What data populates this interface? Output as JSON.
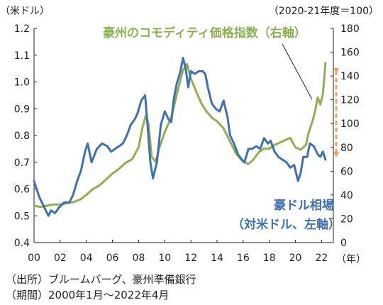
{
  "chart_data": {
    "type": "line",
    "left_unit_label": "（米ドル）",
    "right_unit_label": "（2020-21年度＝100）",
    "x_unit_label": "（年）",
    "x_ticks": [
      "00",
      "02",
      "04",
      "06",
      "08",
      "10",
      "12",
      "14",
      "16",
      "18",
      "20",
      "22"
    ],
    "x_range": [
      2000,
      2022.9
    ],
    "y_left": {
      "ticks": [
        "0.4",
        "0.5",
        "0.6",
        "0.7",
        "0.8",
        "0.9",
        "1.0",
        "1.1",
        "1.2"
      ],
      "range": [
        0.4,
        1.2
      ]
    },
    "y_right": {
      "ticks": [
        "0",
        "20",
        "40",
        "60",
        "80",
        "100",
        "120",
        "140",
        "160",
        "180"
      ],
      "range": [
        0,
        180
      ]
    },
    "series": [
      {
        "name": "豪州のコモディティ価格指数（右軸）",
        "axis": "right",
        "color": "#8DB152",
        "x": [
          2000.0,
          2000.5,
          2001.0,
          2001.5,
          2002.0,
          2002.5,
          2003.0,
          2003.5,
          2004.0,
          2004.5,
          2005.0,
          2005.5,
          2006.0,
          2006.5,
          2007.0,
          2007.5,
          2008.0,
          2008.3,
          2008.55,
          2008.75,
          2009.0,
          2009.3,
          2009.6,
          2010.0,
          2010.5,
          2011.0,
          2011.4,
          2011.7,
          2012.0,
          2012.4,
          2012.8,
          2013.2,
          2013.6,
          2014.0,
          2014.5,
          2015.0,
          2015.5,
          2016.0,
          2016.4,
          2016.8,
          2017.2,
          2017.6,
          2018.0,
          2018.4,
          2018.8,
          2019.2,
          2019.6,
          2020.0,
          2020.4,
          2020.8,
          2021.0,
          2021.3,
          2021.5,
          2021.7,
          2021.9,
          2022.1,
          2022.3
        ],
        "values": [
          31,
          30,
          31,
          32,
          32,
          33,
          34,
          36,
          40,
          45,
          48,
          53,
          58,
          62,
          67,
          70,
          80,
          97,
          107,
          100,
          72,
          68,
          80,
          93,
          105,
          128,
          145,
          150,
          138,
          127,
          117,
          110,
          105,
          102,
          96,
          85,
          74,
          68,
          66,
          70,
          76,
          79,
          79,
          82,
          84,
          86,
          88,
          80,
          78,
          82,
          92,
          102,
          110,
          122,
          116,
          125,
          151
        ]
      },
      {
        "name": "豪ドル相場（対米ドル、左軸）",
        "axis": "left",
        "color": "#3F70B0",
        "x": [
          2000.0,
          2000.4,
          2000.8,
          2001.1,
          2001.3,
          2001.6,
          2001.9,
          2002.3,
          2002.7,
          2003.0,
          2003.3,
          2003.6,
          2003.9,
          2004.1,
          2004.4,
          2004.8,
          2005.2,
          2005.6,
          2005.9,
          2006.2,
          2006.5,
          2006.8,
          2007.1,
          2007.4,
          2007.7,
          2007.9,
          2008.2,
          2008.5,
          2008.7,
          2008.9,
          2009.1,
          2009.4,
          2009.7,
          2010.0,
          2010.3,
          2010.5,
          2010.7,
          2010.9,
          2011.2,
          2011.4,
          2011.6,
          2011.8,
          2012.0,
          2012.3,
          2012.6,
          2012.9,
          2013.1,
          2013.3,
          2013.6,
          2013.9,
          2014.2,
          2014.5,
          2014.8,
          2015.0,
          2015.3,
          2015.6,
          2015.9,
          2016.1,
          2016.4,
          2016.7,
          2017.0,
          2017.3,
          2017.6,
          2017.9,
          2018.1,
          2018.4,
          2018.7,
          2019.0,
          2019.3,
          2019.6,
          2019.9,
          2020.2,
          2020.4,
          2020.6,
          2020.9,
          2021.1,
          2021.4,
          2021.7,
          2021.9,
          2022.1,
          2022.3
        ],
        "values": [
          0.63,
          0.57,
          0.53,
          0.5,
          0.52,
          0.51,
          0.53,
          0.55,
          0.55,
          0.58,
          0.63,
          0.67,
          0.74,
          0.77,
          0.7,
          0.75,
          0.77,
          0.76,
          0.74,
          0.75,
          0.76,
          0.77,
          0.8,
          0.84,
          0.86,
          0.88,
          0.93,
          0.95,
          0.83,
          0.7,
          0.64,
          0.7,
          0.84,
          0.89,
          0.86,
          0.85,
          0.94,
          0.99,
          1.04,
          1.09,
          1.05,
          0.98,
          1.04,
          1.03,
          1.04,
          1.04,
          1.03,
          0.98,
          0.92,
          0.9,
          0.89,
          0.93,
          0.87,
          0.8,
          0.77,
          0.73,
          0.71,
          0.7,
          0.75,
          0.75,
          0.76,
          0.75,
          0.79,
          0.77,
          0.78,
          0.74,
          0.72,
          0.71,
          0.7,
          0.68,
          0.69,
          0.63,
          0.66,
          0.72,
          0.72,
          0.77,
          0.76,
          0.73,
          0.72,
          0.74,
          0.71
        ]
      }
    ],
    "annotation": "double-headed arrow near 2022 spanning the gap between the two series"
  },
  "notes": {
    "source": "（出所）ブルームバーグ、豪州準備銀行",
    "period": "（期間）2000年1月～2022年4月"
  }
}
